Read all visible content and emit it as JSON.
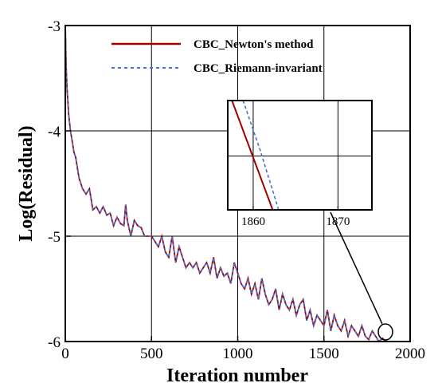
{
  "chart_data": {
    "type": "line",
    "xlabel": "Iteration number",
    "ylabel": "Log(Residual)",
    "xlim": [
      0,
      2000
    ],
    "ylim": [
      -6,
      -3
    ],
    "xticks": [
      "0",
      "500",
      "1000",
      "1500",
      "2000"
    ],
    "yticks": [
      "-3",
      "-4",
      "-5",
      "-6"
    ],
    "grid": true,
    "legend_position": "top-right",
    "series": [
      {
        "name": "CBC_Newton's method",
        "color": "#a00000",
        "style": "solid",
        "x": [
          0,
          5,
          10,
          20,
          30,
          40,
          50,
          60,
          80,
          100,
          120,
          140,
          160,
          180,
          200,
          220,
          240,
          260,
          280,
          300,
          320,
          340,
          350,
          360,
          380,
          400,
          420,
          440,
          460,
          480,
          500,
          520,
          540,
          560,
          580,
          600,
          620,
          640,
          660,
          680,
          700,
          720,
          740,
          760,
          780,
          800,
          820,
          840,
          860,
          880,
          900,
          920,
          940,
          960,
          980,
          1000,
          1020,
          1040,
          1060,
          1080,
          1100,
          1120,
          1140,
          1160,
          1180,
          1200,
          1220,
          1240,
          1260,
          1280,
          1300,
          1320,
          1340,
          1360,
          1380,
          1400,
          1420,
          1440,
          1460,
          1480,
          1500,
          1520,
          1540,
          1560,
          1580,
          1600,
          1620,
          1640,
          1660,
          1680,
          1700,
          1720,
          1740,
          1760,
          1780,
          1800,
          1820,
          1840,
          1860,
          1880
        ],
        "y": [
          -3.0,
          -3.4,
          -3.6,
          -3.85,
          -4.0,
          -4.1,
          -4.2,
          -4.25,
          -4.45,
          -4.55,
          -4.6,
          -4.55,
          -4.75,
          -4.72,
          -4.78,
          -4.72,
          -4.8,
          -4.78,
          -4.9,
          -4.82,
          -4.88,
          -4.9,
          -4.7,
          -4.85,
          -5.0,
          -4.85,
          -4.9,
          -4.92,
          -5.0,
          -5.0,
          -5.0,
          -5.05,
          -5.1,
          -5.0,
          -5.15,
          -5.2,
          -5.0,
          -5.25,
          -5.1,
          -5.2,
          -5.3,
          -5.25,
          -5.3,
          -5.25,
          -5.35,
          -5.3,
          -5.25,
          -5.35,
          -5.2,
          -5.4,
          -5.3,
          -5.38,
          -5.35,
          -5.45,
          -5.25,
          -5.35,
          -5.45,
          -5.5,
          -5.4,
          -5.55,
          -5.45,
          -5.6,
          -5.4,
          -5.55,
          -5.65,
          -5.6,
          -5.5,
          -5.7,
          -5.55,
          -5.65,
          -5.7,
          -5.6,
          -5.75,
          -5.65,
          -5.6,
          -5.8,
          -5.7,
          -5.85,
          -5.75,
          -5.8,
          -5.85,
          -5.7,
          -5.9,
          -5.75,
          -5.85,
          -5.9,
          -5.8,
          -5.95,
          -5.85,
          -5.9,
          -5.95,
          -5.85,
          -5.95,
          -5.98,
          -5.9,
          -5.95,
          -6.0,
          -5.97,
          -6.0,
          -6.0
        ]
      },
      {
        "name": "CBC_Riemann-invariant",
        "color": "#4a6fd4",
        "style": "dashed",
        "x": [
          0,
          5,
          10,
          20,
          30,
          40,
          50,
          60,
          80,
          100,
          120,
          140,
          160,
          180,
          200,
          220,
          240,
          260,
          280,
          300,
          320,
          340,
          350,
          360,
          380,
          400,
          420,
          440,
          460,
          480,
          500,
          520,
          540,
          560,
          580,
          600,
          620,
          640,
          660,
          680,
          700,
          720,
          740,
          760,
          780,
          800,
          820,
          840,
          860,
          880,
          900,
          920,
          940,
          960,
          980,
          1000,
          1020,
          1040,
          1060,
          1080,
          1100,
          1120,
          1140,
          1160,
          1180,
          1200,
          1220,
          1240,
          1260,
          1280,
          1300,
          1320,
          1340,
          1360,
          1380,
          1400,
          1420,
          1440,
          1460,
          1480,
          1500,
          1520,
          1540,
          1560,
          1580,
          1600,
          1620,
          1640,
          1660,
          1680,
          1700,
          1720,
          1740,
          1760,
          1780,
          1800,
          1820,
          1840,
          1860,
          1880
        ],
        "y": [
          -3.0,
          -3.4,
          -3.6,
          -3.85,
          -4.0,
          -4.1,
          -4.2,
          -4.25,
          -4.45,
          -4.55,
          -4.6,
          -4.55,
          -4.75,
          -4.72,
          -4.78,
          -4.72,
          -4.8,
          -4.78,
          -4.9,
          -4.82,
          -4.88,
          -4.9,
          -4.7,
          -4.85,
          -5.0,
          -4.85,
          -4.9,
          -4.92,
          -5.0,
          -5.0,
          -5.0,
          -5.05,
          -5.1,
          -5.0,
          -5.15,
          -5.2,
          -5.0,
          -5.25,
          -5.1,
          -5.2,
          -5.3,
          -5.25,
          -5.3,
          -5.25,
          -5.35,
          -5.3,
          -5.25,
          -5.35,
          -5.2,
          -5.4,
          -5.3,
          -5.38,
          -5.35,
          -5.45,
          -5.25,
          -5.35,
          -5.45,
          -5.5,
          -5.4,
          -5.55,
          -5.45,
          -5.6,
          -5.4,
          -5.55,
          -5.65,
          -5.6,
          -5.5,
          -5.7,
          -5.55,
          -5.65,
          -5.7,
          -5.6,
          -5.75,
          -5.65,
          -5.6,
          -5.8,
          -5.7,
          -5.85,
          -5.75,
          -5.8,
          -5.85,
          -5.7,
          -5.9,
          -5.75,
          -5.85,
          -5.9,
          -5.8,
          -5.95,
          -5.85,
          -5.9,
          -5.95,
          -5.85,
          -5.95,
          -5.98,
          -5.9,
          -5.95,
          -6.0,
          -5.97,
          -6.0,
          -6.0
        ]
      }
    ],
    "inset": {
      "xlim": [
        1857,
        1874
      ],
      "xticks": [
        "1860",
        "1870"
      ],
      "series": [
        {
          "name": "CBC_Newton's method",
          "x": [
            1857.5,
            1862.3
          ],
          "y": [
            1.0,
            0.0
          ]
        },
        {
          "name": "CBC_Riemann-invariant",
          "x": [
            1858.8,
            1860.8,
            1863.0
          ],
          "y": [
            1.0,
            0.55,
            0.0
          ]
        }
      ]
    }
  }
}
